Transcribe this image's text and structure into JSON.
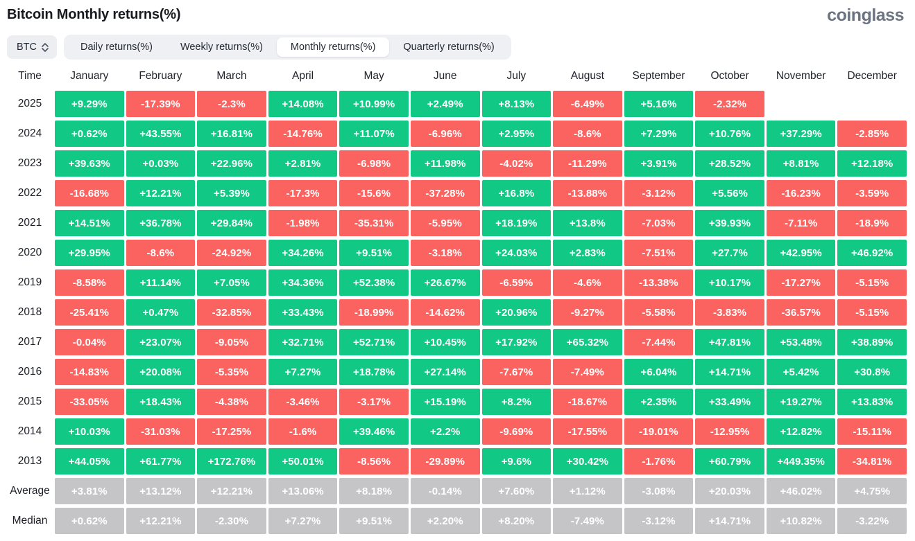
{
  "page": {
    "title": "Bitcoin Monthly returns(%)",
    "logo": "coinglass"
  },
  "controls": {
    "symbol_select": {
      "value": "BTC"
    },
    "tabs": [
      {
        "label": "Daily returns(%)",
        "active": false
      },
      {
        "label": "Weekly returns(%)",
        "active": false
      },
      {
        "label": "Monthly returns(%)",
        "active": true
      },
      {
        "label": "Quarterly returns(%)",
        "active": false
      }
    ]
  },
  "chart_data": {
    "type": "heatmap",
    "title": "Bitcoin Monthly returns(%)",
    "row_header": "Time",
    "columns": [
      "January",
      "February",
      "March",
      "April",
      "May",
      "June",
      "July",
      "August",
      "September",
      "October",
      "November",
      "December"
    ],
    "rows": [
      {
        "label": "2025",
        "kind": "year",
        "values": [
          "+9.29%",
          "-17.39%",
          "-2.3%",
          "+14.08%",
          "+10.99%",
          "+2.49%",
          "+8.13%",
          "-6.49%",
          "+5.16%",
          "-2.32%",
          "",
          ""
        ]
      },
      {
        "label": "2024",
        "kind": "year",
        "values": [
          "+0.62%",
          "+43.55%",
          "+16.81%",
          "-14.76%",
          "+11.07%",
          "-6.96%",
          "+2.95%",
          "-8.6%",
          "+7.29%",
          "+10.76%",
          "+37.29%",
          "-2.85%"
        ]
      },
      {
        "label": "2023",
        "kind": "year",
        "values": [
          "+39.63%",
          "+0.03%",
          "+22.96%",
          "+2.81%",
          "-6.98%",
          "+11.98%",
          "-4.02%",
          "-11.29%",
          "+3.91%",
          "+28.52%",
          "+8.81%",
          "+12.18%"
        ]
      },
      {
        "label": "2022",
        "kind": "year",
        "values": [
          "-16.68%",
          "+12.21%",
          "+5.39%",
          "-17.3%",
          "-15.6%",
          "-37.28%",
          "+16.8%",
          "-13.88%",
          "-3.12%",
          "+5.56%",
          "-16.23%",
          "-3.59%"
        ]
      },
      {
        "label": "2021",
        "kind": "year",
        "values": [
          "+14.51%",
          "+36.78%",
          "+29.84%",
          "-1.98%",
          "-35.31%",
          "-5.95%",
          "+18.19%",
          "+13.8%",
          "-7.03%",
          "+39.93%",
          "-7.11%",
          "-18.9%"
        ]
      },
      {
        "label": "2020",
        "kind": "year",
        "values": [
          "+29.95%",
          "-8.6%",
          "-24.92%",
          "+34.26%",
          "+9.51%",
          "-3.18%",
          "+24.03%",
          "+2.83%",
          "-7.51%",
          "+27.7%",
          "+42.95%",
          "+46.92%"
        ]
      },
      {
        "label": "2019",
        "kind": "year",
        "values": [
          "-8.58%",
          "+11.14%",
          "+7.05%",
          "+34.36%",
          "+52.38%",
          "+26.67%",
          "-6.59%",
          "-4.6%",
          "-13.38%",
          "+10.17%",
          "-17.27%",
          "-5.15%"
        ]
      },
      {
        "label": "2018",
        "kind": "year",
        "values": [
          "-25.41%",
          "+0.47%",
          "-32.85%",
          "+33.43%",
          "-18.99%",
          "-14.62%",
          "+20.96%",
          "-9.27%",
          "-5.58%",
          "-3.83%",
          "-36.57%",
          "-5.15%"
        ]
      },
      {
        "label": "2017",
        "kind": "year",
        "values": [
          "-0.04%",
          "+23.07%",
          "-9.05%",
          "+32.71%",
          "+52.71%",
          "+10.45%",
          "+17.92%",
          "+65.32%",
          "-7.44%",
          "+47.81%",
          "+53.48%",
          "+38.89%"
        ]
      },
      {
        "label": "2016",
        "kind": "year",
        "values": [
          "-14.83%",
          "+20.08%",
          "-5.35%",
          "+7.27%",
          "+18.78%",
          "+27.14%",
          "-7.67%",
          "-7.49%",
          "+6.04%",
          "+14.71%",
          "+5.42%",
          "+30.8%"
        ]
      },
      {
        "label": "2015",
        "kind": "year",
        "values": [
          "-33.05%",
          "+18.43%",
          "-4.38%",
          "-3.46%",
          "-3.17%",
          "+15.19%",
          "+8.2%",
          "-18.67%",
          "+2.35%",
          "+33.49%",
          "+19.27%",
          "+13.83%"
        ]
      },
      {
        "label": "2014",
        "kind": "year",
        "values": [
          "+10.03%",
          "-31.03%",
          "-17.25%",
          "-1.6%",
          "+39.46%",
          "+2.2%",
          "-9.69%",
          "-17.55%",
          "-19.01%",
          "-12.95%",
          "+12.82%",
          "-15.11%"
        ]
      },
      {
        "label": "2013",
        "kind": "year",
        "values": [
          "+44.05%",
          "+61.77%",
          "+172.76%",
          "+50.01%",
          "-8.56%",
          "-29.89%",
          "+9.6%",
          "+30.42%",
          "-1.76%",
          "+60.79%",
          "+449.35%",
          "-34.81%"
        ]
      },
      {
        "label": "Average",
        "kind": "summary",
        "values": [
          "+3.81%",
          "+13.12%",
          "+12.21%",
          "+13.06%",
          "+8.18%",
          "-0.14%",
          "+7.60%",
          "+1.12%",
          "-3.08%",
          "+20.03%",
          "+46.02%",
          "+4.75%"
        ]
      },
      {
        "label": "Median",
        "kind": "summary",
        "values": [
          "+0.62%",
          "+12.21%",
          "-2.30%",
          "+7.27%",
          "+9.51%",
          "+2.20%",
          "+8.20%",
          "-7.49%",
          "-3.12%",
          "+14.71%",
          "+10.82%",
          "-3.22%"
        ]
      }
    ],
    "colors": {
      "positive": "#11c985",
      "negative": "#fb6361",
      "summary": "#c5c5c7",
      "cell_text": "#ffffff"
    }
  }
}
